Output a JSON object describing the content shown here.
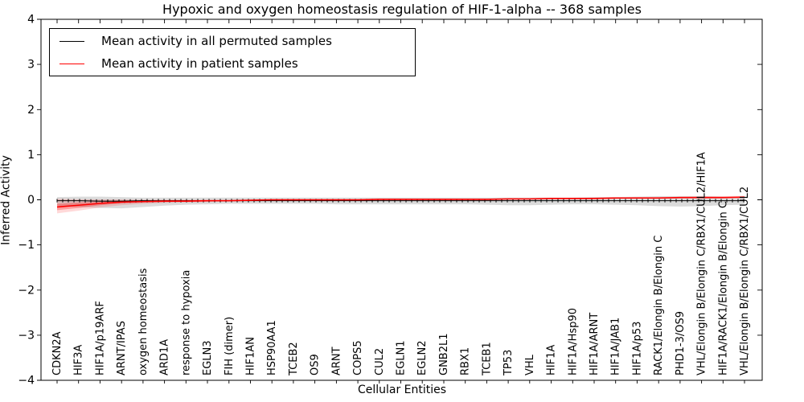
{
  "figure": {
    "title": "Hypoxic and oxygen homeostasis regulation of HIF-1-alpha -- 368 samples",
    "xlabel": "Cellular Entities",
    "ylabel": "Inferred Activity"
  },
  "chart_data": {
    "type": "line",
    "title": "Hypoxic and oxygen homeostasis regulation of HIF-1-alpha -- 368 samples",
    "xlabel": "Cellular Entities",
    "ylabel": "Inferred Activity",
    "ylim": [
      -4,
      4
    ],
    "yticks": [
      4,
      3,
      2,
      1,
      0,
      -1,
      -2,
      -3,
      -4
    ],
    "grid": false,
    "legend_position": "upper left",
    "categories": [
      "CDKN2A",
      "HIF3A",
      "HIF1A/p19ARF",
      "ARNT/IPAS",
      "oxygen homeostasis",
      "ARD1A",
      "response to hypoxia",
      "EGLN3",
      "FIH (dimer)",
      "HIF1AN",
      "HSP90AA1",
      "TCEB2",
      "OS9",
      "ARNT",
      "COPS5",
      "CUL2",
      "EGLN1",
      "EGLN2",
      "GNB2L1",
      "RBX1",
      "TCEB1",
      "TP53",
      "VHL",
      "HIF1A",
      "HIF1A/Hsp90",
      "HIF1A/ARNT",
      "HIF1A/JAB1",
      "HIF1A/p53",
      "RACK1/Elongin B/Elongin C",
      "PHD1-3/OS9",
      "VHL/Elongin B/Elongin C/RBX1/CUL2/HIF1A",
      "HIF1A/RACK1/Elongin B/Elongin C",
      "VHL/Elongin B/Elongin C/RBX1/CUL2"
    ],
    "series": [
      {
        "name": "Mean activity in all permuted samples",
        "color": "#000000",
        "values": [
          -0.02,
          -0.02,
          -0.03,
          -0.03,
          -0.02,
          -0.02,
          -0.02,
          -0.02,
          -0.02,
          -0.02,
          -0.02,
          -0.02,
          -0.02,
          -0.02,
          -0.02,
          -0.02,
          -0.02,
          -0.02,
          -0.02,
          -0.02,
          -0.02,
          -0.02,
          -0.02,
          -0.02,
          -0.02,
          -0.02,
          -0.02,
          -0.02,
          -0.02,
          -0.02,
          -0.02,
          -0.02,
          -0.02
        ]
      },
      {
        "name": "Mean activity in patient samples",
        "color": "#ff0000",
        "values": [
          -0.16,
          -0.12,
          -0.08,
          -0.05,
          -0.04,
          -0.03,
          -0.03,
          -0.02,
          -0.02,
          -0.01,
          0.0,
          0.0,
          0.0,
          0.0,
          0.0,
          0.01,
          0.01,
          0.01,
          0.01,
          0.01,
          0.01,
          0.02,
          0.02,
          0.03,
          0.03,
          0.03,
          0.04,
          0.04,
          0.04,
          0.05,
          0.05,
          0.05,
          0.06
        ]
      }
    ],
    "bands": [
      {
        "name": "permuted-samples-range",
        "color": "#999999",
        "opacity": 0.35,
        "hi": [
          0.06,
          0.07,
          0.07,
          0.06,
          0.05,
          0.05,
          0.05,
          0.05,
          0.05,
          0.05,
          0.05,
          0.05,
          0.05,
          0.05,
          0.05,
          0.05,
          0.05,
          0.05,
          0.05,
          0.05,
          0.05,
          0.05,
          0.05,
          0.05,
          0.05,
          0.06,
          0.06,
          0.07,
          0.08,
          0.08,
          0.08,
          0.07,
          0.06
        ],
        "lo": [
          -0.13,
          -0.16,
          -0.18,
          -0.19,
          -0.16,
          -0.13,
          -0.11,
          -0.1,
          -0.09,
          -0.09,
          -0.09,
          -0.09,
          -0.09,
          -0.1,
          -0.1,
          -0.1,
          -0.1,
          -0.1,
          -0.1,
          -0.1,
          -0.11,
          -0.12,
          -0.12,
          -0.11,
          -0.1,
          -0.1,
          -0.11,
          -0.12,
          -0.14,
          -0.15,
          -0.14,
          -0.12,
          -0.11
        ]
      },
      {
        "name": "patient-samples-range-outer",
        "color": "#ff0000",
        "opacity": 0.15,
        "hi": [
          0.02,
          0.01,
          0.01,
          0.01,
          0.0,
          0.0,
          0.0,
          0.0,
          0.0,
          0.0,
          0.01,
          0.01,
          0.01,
          0.01,
          0.01,
          0.02,
          0.02,
          0.02,
          0.02,
          0.02,
          0.02,
          0.03,
          0.03,
          0.04,
          0.04,
          0.05,
          0.05,
          0.06,
          0.06,
          0.07,
          0.08,
          0.08,
          0.09
        ],
        "lo": [
          -0.3,
          -0.24,
          -0.17,
          -0.12,
          -0.09,
          -0.07,
          -0.06,
          -0.05,
          -0.04,
          -0.03,
          -0.02,
          -0.02,
          -0.02,
          -0.02,
          -0.02,
          -0.01,
          -0.01,
          -0.01,
          -0.01,
          -0.01,
          -0.01,
          0.0,
          0.0,
          0.01,
          0.01,
          0.01,
          0.02,
          0.02,
          0.02,
          0.03,
          0.03,
          0.03,
          0.03
        ]
      },
      {
        "name": "patient-samples-range-inner",
        "color": "#ff0000",
        "opacity": 0.28,
        "hi": [
          -0.09,
          -0.06,
          -0.04,
          -0.02,
          -0.02,
          -0.01,
          -0.01,
          -0.01,
          -0.01,
          0.0,
          0.0,
          0.0,
          0.0,
          0.0,
          0.0,
          0.01,
          0.01,
          0.01,
          0.01,
          0.01,
          0.01,
          0.02,
          0.02,
          0.03,
          0.03,
          0.04,
          0.04,
          0.05,
          0.05,
          0.05,
          0.06,
          0.06,
          0.07
        ],
        "lo": [
          -0.23,
          -0.18,
          -0.12,
          -0.08,
          -0.06,
          -0.05,
          -0.04,
          -0.04,
          -0.03,
          -0.02,
          -0.01,
          -0.01,
          -0.01,
          -0.01,
          -0.01,
          0.0,
          0.0,
          0.0,
          0.0,
          0.0,
          0.0,
          0.01,
          0.01,
          0.02,
          0.02,
          0.02,
          0.03,
          0.03,
          0.03,
          0.04,
          0.04,
          0.04,
          0.05
        ]
      }
    ]
  }
}
